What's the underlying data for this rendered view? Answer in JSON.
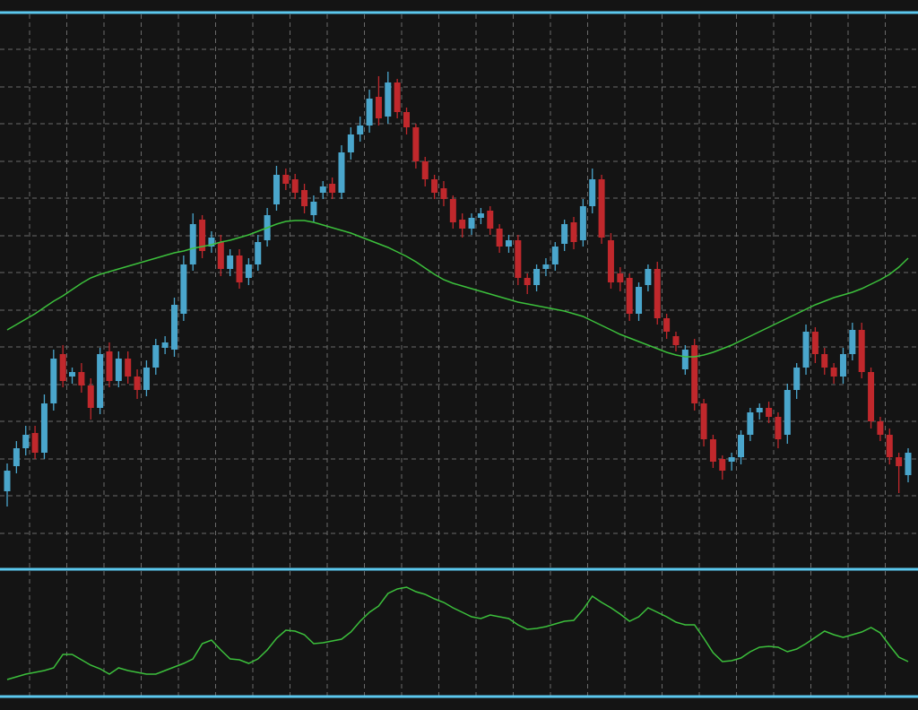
{
  "chart_data": [
    {
      "type": "candlestick",
      "open": [
        102,
        130,
        150,
        167,
        145,
        200,
        255,
        230,
        235,
        220,
        195,
        258,
        225,
        250,
        230,
        215,
        240,
        262,
        260,
        300,
        355,
        405,
        375,
        380,
        350,
        365,
        340,
        355,
        382,
        422,
        455,
        450,
        438,
        410,
        435,
        445,
        435,
        480,
        500,
        510,
        542,
        520,
        558,
        525,
        508,
        470,
        450,
        440,
        428,
        405,
        395,
        407,
        415,
        395,
        375,
        382,
        340,
        332,
        350,
        355,
        378,
        402,
        382,
        420,
        450,
        382,
        345,
        340,
        300,
        332,
        350,
        295,
        275,
        238,
        265,
        200,
        160,
        138,
        135,
        140,
        165,
        190,
        195,
        185,
        165,
        215,
        240,
        280,
        255,
        240,
        230,
        255,
        282,
        235,
        180,
        165,
        140,
        120
      ],
      "high": [
        133,
        158,
        175,
        175,
        210,
        260,
        265,
        240,
        245,
        228,
        262,
        268,
        258,
        258,
        238,
        248,
        272,
        275,
        318,
        365,
        412,
        410,
        392,
        388,
        372,
        372,
        362,
        388,
        418,
        465,
        462,
        456,
        445,
        432,
        448,
        452,
        488,
        508,
        520,
        550,
        565,
        570,
        562,
        530,
        512,
        475,
        455,
        448,
        432,
        412,
        412,
        418,
        420,
        400,
        388,
        388,
        345,
        355,
        362,
        380,
        405,
        408,
        428,
        462,
        455,
        390,
        352,
        345,
        335,
        355,
        358,
        300,
        280,
        265,
        272,
        205,
        165,
        142,
        145,
        170,
        195,
        200,
        202,
        190,
        222,
        245,
        288,
        285,
        262,
        245,
        262,
        290,
        290,
        240,
        185,
        172,
        145,
        150
      ],
      "low": [
        85,
        122,
        142,
        138,
        138,
        192,
        218,
        222,
        212,
        182,
        188,
        218,
        218,
        222,
        205,
        208,
        232,
        255,
        252,
        292,
        348,
        362,
        368,
        342,
        342,
        328,
        332,
        348,
        375,
        415,
        438,
        428,
        412,
        402,
        428,
        428,
        428,
        472,
        492,
        502,
        510,
        512,
        518,
        500,
        462,
        442,
        428,
        420,
        395,
        385,
        388,
        400,
        388,
        368,
        368,
        332,
        322,
        325,
        342,
        348,
        370,
        372,
        375,
        412,
        378,
        328,
        325,
        292,
        292,
        325,
        288,
        272,
        258,
        232,
        192,
        152,
        128,
        115,
        125,
        132,
        158,
        182,
        178,
        150,
        155,
        205,
        232,
        245,
        232,
        222,
        222,
        248,
        228,
        172,
        158,
        132,
        100,
        112
      ],
      "close": [
        125,
        150,
        165,
        145,
        200,
        250,
        225,
        235,
        220,
        195,
        255,
        225,
        250,
        230,
        215,
        240,
        265,
        268,
        310,
        355,
        400,
        370,
        385,
        350,
        365,
        335,
        355,
        380,
        410,
        455,
        445,
        435,
        420,
        425,
        442,
        435,
        480,
        500,
        510,
        540,
        518,
        558,
        525,
        508,
        470,
        450,
        435,
        428,
        402,
        395,
        407,
        412,
        395,
        375,
        382,
        340,
        332,
        350,
        355,
        375,
        400,
        380,
        420,
        450,
        385,
        335,
        335,
        300,
        330,
        350,
        295,
        280,
        265,
        260,
        200,
        160,
        135,
        125,
        140,
        165,
        190,
        195,
        185,
        160,
        215,
        240,
        280,
        255,
        240,
        230,
        255,
        282,
        235,
        180,
        165,
        140,
        130,
        145
      ],
      "overlay": {
        "type": "line",
        "color": "#3cc03c",
        "values": [
          282,
          288,
          294,
          300,
          307,
          314,
          320,
          327,
          334,
          340,
          344,
          347,
          350,
          353,
          356,
          359,
          362,
          365,
          368,
          370,
          373,
          375,
          377,
          380,
          382,
          385,
          388,
          392,
          396,
          400,
          403,
          404,
          404,
          402,
          399,
          396,
          393,
          390,
          386,
          382,
          378,
          374,
          369,
          364,
          358,
          351,
          344,
          338,
          334,
          331,
          328,
          325,
          322,
          319,
          316,
          313,
          311,
          309,
          307,
          305,
          303,
          300,
          297,
          292,
          287,
          282,
          277,
          273,
          269,
          265,
          261,
          257,
          254,
          252,
          252,
          254,
          257,
          261,
          265,
          270,
          275,
          280,
          285,
          290,
          295,
          300,
          305,
          310,
          314,
          318,
          321,
          324,
          328,
          333,
          338,
          344,
          352,
          362
        ]
      },
      "up_color": "#4aa6cc",
      "down_color": "#c0282c",
      "ylim": [
        15,
        635
      ],
      "yticks": [
        55,
        97,
        138,
        180,
        221,
        263,
        304,
        346,
        387,
        429,
        470,
        512,
        553,
        595
      ],
      "grid": true
    },
    {
      "type": "line",
      "color": "#3cc03c",
      "values": [
        22,
        25,
        28,
        30,
        32,
        35,
        50,
        50,
        44,
        38,
        34,
        28,
        35,
        32,
        30,
        28,
        28,
        32,
        36,
        40,
        45,
        62,
        66,
        55,
        45,
        44,
        40,
        45,
        55,
        68,
        77,
        76,
        72,
        62,
        63,
        65,
        67,
        75,
        87,
        97,
        104,
        118,
        123,
        125,
        120,
        117,
        112,
        108,
        102,
        97,
        92,
        90,
        94,
        92,
        90,
        83,
        78,
        79,
        81,
        84,
        87,
        88,
        100,
        115,
        108,
        102,
        95,
        87,
        92,
        102,
        97,
        92,
        86,
        83,
        83,
        68,
        52,
        42,
        43,
        46,
        53,
        58,
        59,
        58,
        53,
        56,
        62,
        69,
        76,
        72,
        69,
        72,
        75,
        80,
        74,
        60,
        47,
        42
      ],
      "ylim": [
        0,
        140
      ]
    }
  ]
}
